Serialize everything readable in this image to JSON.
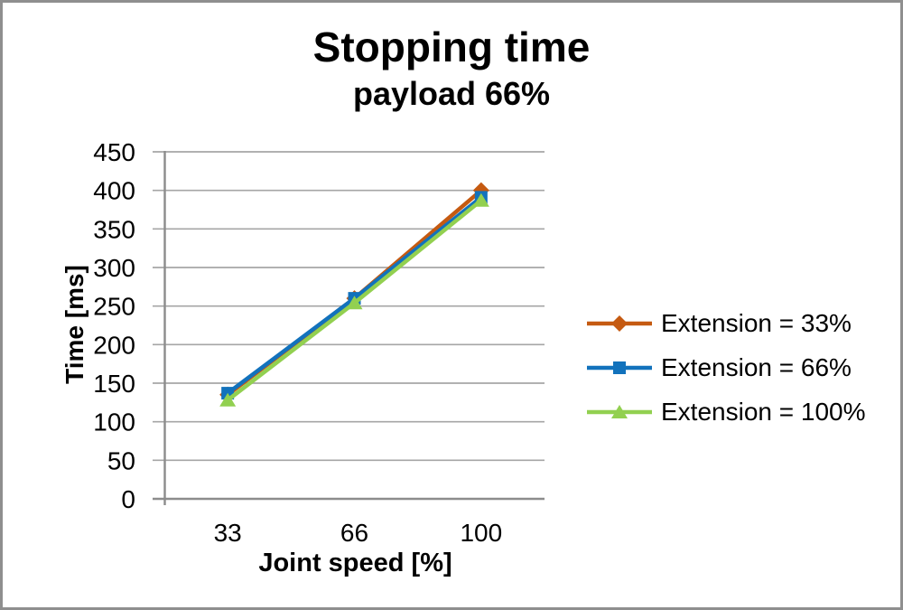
{
  "page": {
    "background": "#ffffff",
    "border_color": "#8f8f8f"
  },
  "chart_data": {
    "type": "line",
    "title": "Stopping time",
    "subtitle": "payload 66%",
    "xlabel": "Joint speed [%]",
    "ylabel": "Time [ms]",
    "categories": [
      "33",
      "66",
      "100"
    ],
    "series": [
      {
        "name": "Extension = 33%",
        "color": "#C55A11",
        "marker": "diamond",
        "values": [
          135,
          260,
          400
        ]
      },
      {
        "name": "Extension = 66%",
        "color": "#1272BC",
        "marker": "square",
        "values": [
          137,
          260,
          391
        ]
      },
      {
        "name": "Extension = 100%",
        "color": "#92D050",
        "marker": "triangle",
        "values": [
          128,
          254,
          387
        ]
      }
    ],
    "ylim": [
      0,
      450
    ],
    "ytick_step": 50,
    "yticks": [
      0,
      50,
      100,
      150,
      200,
      250,
      300,
      350,
      400,
      450
    ],
    "grid": true,
    "legend_position": "right",
    "colors": {
      "gridline": "#a6a6a6",
      "axis": "#8c8c8c",
      "text": "#000000"
    }
  }
}
